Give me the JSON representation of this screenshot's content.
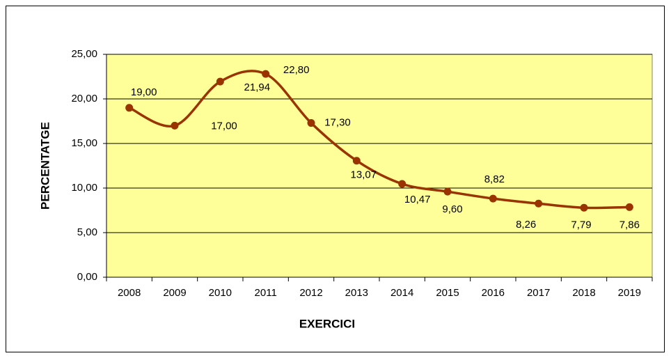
{
  "chart_data": {
    "type": "line",
    "x_label": "EXERCICI",
    "y_label": "PERCENTATGE",
    "categories": [
      "2008",
      "2009",
      "2010",
      "2011",
      "2012",
      "2013",
      "2014",
      "2015",
      "2016",
      "2017",
      "2018",
      "2019"
    ],
    "values": [
      19.0,
      17.0,
      21.94,
      22.8,
      17.3,
      13.07,
      10.47,
      9.6,
      8.82,
      8.26,
      7.79,
      7.86
    ],
    "value_labels": [
      "19,00",
      "17,00",
      "21,94",
      "22,80",
      "17,30",
      "13,07",
      "10,47",
      "9,60",
      "8,82",
      "8,26",
      "7,79",
      "7,86"
    ],
    "color": "#993300",
    "plot_background": "#ffff99",
    "grid": true,
    "smooth": true,
    "ylim": [
      0,
      25
    ],
    "yticks": [
      {
        "value": 0,
        "label": "0,00"
      },
      {
        "value": 5,
        "label": "5,00"
      },
      {
        "value": 10,
        "label": "10,00"
      },
      {
        "value": 15,
        "label": "15,00"
      },
      {
        "value": 20,
        "label": "20,00"
      },
      {
        "value": 25,
        "label": "25,00"
      }
    ]
  }
}
